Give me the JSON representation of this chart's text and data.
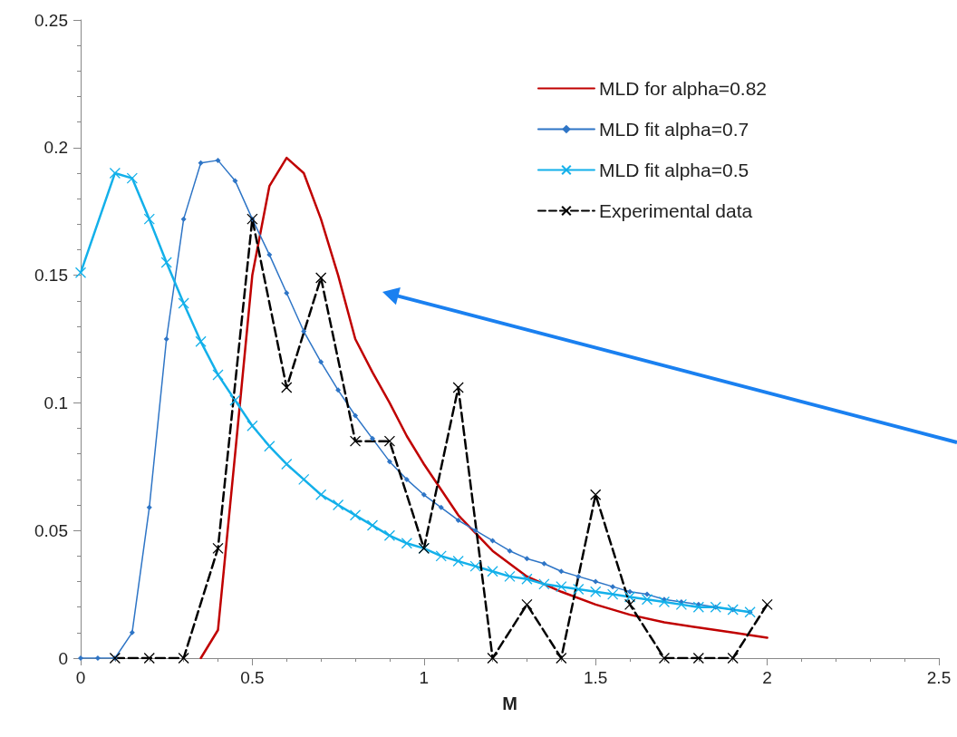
{
  "chart_data": {
    "type": "line",
    "xlabel": "M",
    "xlim": [
      0,
      2.5
    ],
    "xticks": [
      0,
      0.5,
      1,
      1.5,
      2,
      2.5
    ],
    "ylim": [
      0,
      0.25
    ],
    "yticks": [
      0,
      0.05,
      0.1,
      0.15,
      0.2,
      0.25
    ],
    "grid": false,
    "legend": "top right",
    "series": [
      {
        "name": "MLD for alpha=0.82",
        "color": "#c00000",
        "marker": "none",
        "line_style": "solid",
        "x": [
          0.35,
          0.4,
          0.45,
          0.5,
          0.55,
          0.6,
          0.65,
          0.7,
          0.75,
          0.8,
          0.85,
          0.9,
          0.95,
          1,
          1.1,
          1.2,
          1.3,
          1.4,
          1.5,
          1.6,
          1.7,
          1.8,
          1.9,
          2
        ],
        "values": [
          0,
          0.011,
          0.08,
          0.15,
          0.185,
          0.196,
          0.19,
          0.172,
          0.15,
          0.125,
          0.112,
          0.1,
          0.087,
          0.076,
          0.056,
          0.042,
          0.032,
          0.026,
          0.021,
          0.017,
          0.014,
          0.012,
          0.01,
          0.008
        ]
      },
      {
        "name": "MLD fit alpha=0.7",
        "color": "#2e75c6",
        "marker": "diamond",
        "line_style": "solid",
        "x": [
          0,
          0.05,
          0.1,
          0.15,
          0.2,
          0.25,
          0.3,
          0.35,
          0.4,
          0.45,
          0.5,
          0.55,
          0.6,
          0.65,
          0.7,
          0.75,
          0.8,
          0.85,
          0.9,
          0.95,
          1,
          1.05,
          1.1,
          1.15,
          1.2,
          1.25,
          1.3,
          1.35,
          1.4,
          1.45,
          1.5,
          1.55,
          1.6,
          1.65,
          1.7,
          1.75,
          1.8,
          1.85,
          1.9,
          1.95
        ],
        "values": [
          0,
          0,
          0,
          0.01,
          0.059,
          0.125,
          0.172,
          0.194,
          0.195,
          0.187,
          0.172,
          0.158,
          0.143,
          0.128,
          0.116,
          0.105,
          0.095,
          0.086,
          0.077,
          0.07,
          0.064,
          0.059,
          0.054,
          0.05,
          0.046,
          0.042,
          0.039,
          0.037,
          0.034,
          0.032,
          0.03,
          0.028,
          0.026,
          0.025,
          0.023,
          0.022,
          0.021,
          0.02,
          0.019,
          0.018
        ]
      },
      {
        "name": "MLD fit alpha=0.5",
        "color": "#13b0ea",
        "marker": "cross",
        "line_style": "solid",
        "x": [
          0,
          0.1,
          0.15,
          0.2,
          0.25,
          0.3,
          0.35,
          0.4,
          0.45,
          0.5,
          0.55,
          0.6,
          0.65,
          0.7,
          0.75,
          0.8,
          0.85,
          0.9,
          0.95,
          1,
          1.05,
          1.1,
          1.15,
          1.2,
          1.25,
          1.3,
          1.35,
          1.4,
          1.45,
          1.5,
          1.55,
          1.6,
          1.65,
          1.7,
          1.75,
          1.8,
          1.85,
          1.9,
          1.95
        ],
        "values": [
          0.151,
          0.19,
          0.188,
          0.172,
          0.155,
          0.139,
          0.124,
          0.111,
          0.101,
          0.091,
          0.083,
          0.076,
          0.07,
          0.064,
          0.06,
          0.056,
          0.052,
          0.048,
          0.045,
          0.043,
          0.04,
          0.038,
          0.036,
          0.034,
          0.032,
          0.031,
          0.029,
          0.028,
          0.027,
          0.026,
          0.025,
          0.024,
          0.023,
          0.022,
          0.021,
          0.02,
          0.02,
          0.019,
          0.018
        ]
      },
      {
        "name": "Experimental data",
        "color": "#000000",
        "marker": "cross",
        "line_style": "dashed",
        "x": [
          0.1,
          0.2,
          0.3,
          0.4,
          0.5,
          0.6,
          0.7,
          0.8,
          0.9,
          1,
          1.1,
          1.2,
          1.3,
          1.4,
          1.5,
          1.6,
          1.7,
          1.8,
          1.9,
          2
        ],
        "values": [
          0,
          0,
          0,
          0.043,
          0.172,
          0.106,
          0.149,
          0.085,
          0.085,
          0.043,
          0.106,
          0,
          0.021,
          0,
          0.064,
          0.021,
          0,
          0,
          0,
          0.021
        ]
      }
    ]
  }
}
